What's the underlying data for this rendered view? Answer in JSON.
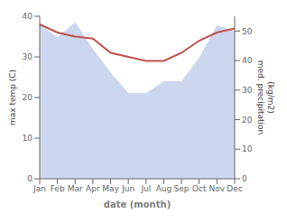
{
  "chart_data": {
    "type": "line",
    "xlabel": "date (month)",
    "ylabel": "max temp (C)",
    "y2label": "med. precipitation\n(kg/m2)",
    "categories": [
      "Jan",
      "Feb",
      "Mar",
      "Apr",
      "May",
      "Jun",
      "Jul",
      "Aug",
      "Sep",
      "Oct",
      "Nov",
      "Dec"
    ],
    "series": [
      {
        "type": "area",
        "axis": "y2",
        "color": "#b8c4e8",
        "values": [
          52,
          48,
          53,
          44,
          36,
          29,
          29,
          33,
          33,
          41,
          52,
          50
        ]
      },
      {
        "type": "line",
        "color": "#c0504d",
        "values": [
          38,
          36,
          35,
          34.5,
          31,
          30,
          29,
          29,
          31,
          34,
          36,
          37
        ]
      }
    ],
    "ylim": [
      0,
      40
    ],
    "yticks": [
      0,
      10,
      20,
      30,
      40
    ],
    "y2lim": [
      0,
      55
    ],
    "y2ticks": [
      0,
      10,
      20,
      30,
      40,
      50
    ],
    "grid": false
  }
}
